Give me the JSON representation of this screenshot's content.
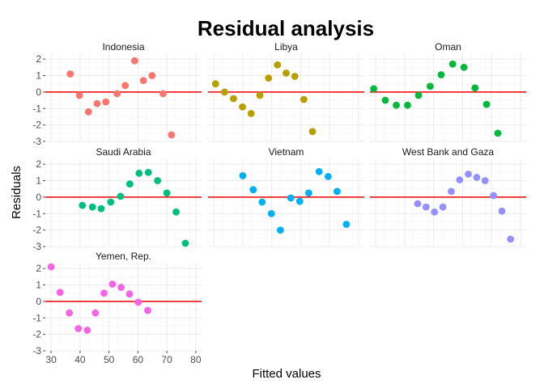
{
  "chart_data": {
    "type": "scatter",
    "title": "Residual analysis",
    "xlabel": "Fitted values",
    "ylabel": "Residuals",
    "xlim": [
      28,
      82
    ],
    "ylim": [
      -3,
      2.35
    ],
    "x_ticks": [
      "30",
      "40",
      "50",
      "60",
      "70",
      "80"
    ],
    "x_tick_values": [
      30,
      40,
      50,
      60,
      70,
      80
    ],
    "y_ticks": [
      "2",
      "1",
      "0",
      "-1",
      "-2",
      "-3"
    ],
    "y_tick_values": [
      2,
      1,
      0,
      -1,
      -2,
      -3
    ],
    "reference_line": {
      "y": 0,
      "color": "#ee0000"
    },
    "grid": true,
    "facets": [
      {
        "name": "Indonesia",
        "color": "#F8766D",
        "points": [
          {
            "x": 36.6,
            "y": 1.1
          },
          {
            "x": 39.8,
            "y": -0.2
          },
          {
            "x": 42.9,
            "y": -1.2
          },
          {
            "x": 45.9,
            "y": -0.7
          },
          {
            "x": 48.9,
            "y": -0.6
          },
          {
            "x": 52.8,
            "y": -0.1
          },
          {
            "x": 55.6,
            "y": 0.4
          },
          {
            "x": 58.9,
            "y": 1.9
          },
          {
            "x": 61.9,
            "y": 0.7
          },
          {
            "x": 64.9,
            "y": 1.0
          },
          {
            "x": 68.7,
            "y": -0.1
          },
          {
            "x": 71.6,
            "y": -2.6
          }
        ]
      },
      {
        "name": "Libya",
        "color": "#B79F00",
        "points": [
          {
            "x": 30.6,
            "y": 0.5
          },
          {
            "x": 33.7,
            "y": 0.0
          },
          {
            "x": 36.8,
            "y": -0.4
          },
          {
            "x": 39.9,
            "y": -0.9
          },
          {
            "x": 42.9,
            "y": -1.3
          },
          {
            "x": 45.9,
            "y": -0.2
          },
          {
            "x": 48.9,
            "y": 0.85
          },
          {
            "x": 52.0,
            "y": 1.65
          },
          {
            "x": 55.0,
            "y": 1.15
          },
          {
            "x": 58.0,
            "y": 0.95
          },
          {
            "x": 61.1,
            "y": -0.45
          },
          {
            "x": 64.1,
            "y": -2.4
          }
        ]
      },
      {
        "name": "Oman",
        "color": "#00BA38",
        "points": [
          {
            "x": 29.3,
            "y": 0.2
          },
          {
            "x": 33.3,
            "y": -0.5
          },
          {
            "x": 37.1,
            "y": -0.8
          },
          {
            "x": 41.0,
            "y": -0.8
          },
          {
            "x": 44.8,
            "y": -0.2
          },
          {
            "x": 48.8,
            "y": 0.35
          },
          {
            "x": 52.6,
            "y": 1.05
          },
          {
            "x": 56.6,
            "y": 1.7
          },
          {
            "x": 60.5,
            "y": 1.5
          },
          {
            "x": 64.3,
            "y": 0.25
          },
          {
            "x": 68.3,
            "y": -0.75
          },
          {
            "x": 72.2,
            "y": -2.5
          }
        ]
      },
      {
        "name": "Saudi Arabia",
        "color": "#00BF7D",
        "points": [
          {
            "x": 40.8,
            "y": -0.5
          },
          {
            "x": 44.3,
            "y": -0.6
          },
          {
            "x": 47.3,
            "y": -0.7
          },
          {
            "x": 50.6,
            "y": -0.3
          },
          {
            "x": 54.0,
            "y": 0.05
          },
          {
            "x": 57.2,
            "y": 0.8
          },
          {
            "x": 60.4,
            "y": 1.45
          },
          {
            "x": 63.6,
            "y": 1.5
          },
          {
            "x": 66.8,
            "y": 1.0
          },
          {
            "x": 70.0,
            "y": 0.25
          },
          {
            "x": 73.2,
            "y": -0.9
          },
          {
            "x": 76.4,
            "y": -2.8
          }
        ]
      },
      {
        "name": "Vietnam",
        "color": "#00B0F6",
        "points": [
          {
            "x": 40.0,
            "y": 1.3
          },
          {
            "x": 43.6,
            "y": 0.45
          },
          {
            "x": 46.7,
            "y": -0.3
          },
          {
            "x": 49.9,
            "y": -1.0
          },
          {
            "x": 53.0,
            "y": -2.0
          },
          {
            "x": 56.6,
            "y": -0.05
          },
          {
            "x": 59.7,
            "y": -0.25
          },
          {
            "x": 62.8,
            "y": 0.25
          },
          {
            "x": 66.4,
            "y": 1.55
          },
          {
            "x": 69.5,
            "y": 1.25
          },
          {
            "x": 72.6,
            "y": 0.35
          },
          {
            "x": 75.8,
            "y": -1.65
          }
        ]
      },
      {
        "name": "West Bank and Gaza",
        "color": "#9590FF",
        "points": [
          {
            "x": 44.5,
            "y": -0.4
          },
          {
            "x": 47.4,
            "y": -0.6
          },
          {
            "x": 50.3,
            "y": -0.9
          },
          {
            "x": 53.2,
            "y": -0.6
          },
          {
            "x": 56.1,
            "y": 0.35
          },
          {
            "x": 59.0,
            "y": 1.05
          },
          {
            "x": 62.0,
            "y": 1.4
          },
          {
            "x": 64.9,
            "y": 1.2
          },
          {
            "x": 67.8,
            "y": 1.0
          },
          {
            "x": 70.7,
            "y": 0.1
          },
          {
            "x": 73.6,
            "y": -0.85
          },
          {
            "x": 76.6,
            "y": -2.55
          }
        ]
      },
      {
        "name": "Yemen, Rep.",
        "color": "#F564E3",
        "points": [
          {
            "x": 30.0,
            "y": 2.1
          },
          {
            "x": 33.1,
            "y": 0.55
          },
          {
            "x": 36.3,
            "y": -0.7
          },
          {
            "x": 39.4,
            "y": -1.65
          },
          {
            "x": 42.5,
            "y": -1.75
          },
          {
            "x": 45.3,
            "y": -0.7
          },
          {
            "x": 48.3,
            "y": 0.5
          },
          {
            "x": 51.2,
            "y": 1.05
          },
          {
            "x": 54.2,
            "y": 0.85
          },
          {
            "x": 57.1,
            "y": 0.45
          },
          {
            "x": 60.1,
            "y": -0.05
          },
          {
            "x": 63.4,
            "y": -0.55
          }
        ]
      }
    ]
  }
}
